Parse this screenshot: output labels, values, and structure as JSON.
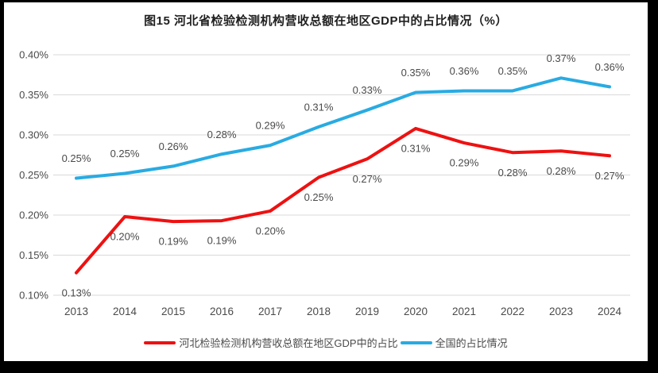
{
  "title": "图15 河北省检验检测机构营收总额在地区GDP中的占比情况（%）",
  "colors": {
    "hebei_series": "#ee1111",
    "national_series": "#29abe2",
    "gridline": "#d9d9d9",
    "axis_text": "#4a4a4a",
    "data_label_text": "#4a4a4a",
    "title_text": "#1f1f1f",
    "frame": "#000000",
    "background": "#ffffff"
  },
  "chart_data": {
    "type": "line",
    "title": "图15 河北省检验检测机构营收总额在地区GDP中的占比情况（%）",
    "categories": [
      "2013",
      "2014",
      "2015",
      "2016",
      "2017",
      "2018",
      "2019",
      "2020",
      "2021",
      "2022",
      "2023",
      "2024"
    ],
    "series": [
      {
        "name": "河北检验检测机构营收总额在地区GDP中的占比",
        "color": "#ee1111",
        "values": [
          0.13,
          0.2,
          0.19,
          0.19,
          0.2,
          0.25,
          0.27,
          0.31,
          0.29,
          0.28,
          0.28,
          0.27
        ],
        "labels": [
          "0.13%",
          "0.20%",
          "0.19%",
          "0.19%",
          "0.20%",
          "0.25%",
          "0.27%",
          "0.31%",
          "0.29%",
          "0.28%",
          "0.28%",
          "0.27%"
        ],
        "plot_values": [
          0.128,
          0.198,
          0.192,
          0.193,
          0.205,
          0.247,
          0.27,
          0.308,
          0.29,
          0.278,
          0.28,
          0.274
        ],
        "label_side": "below"
      },
      {
        "name": "全国的占比情况",
        "color": "#29abe2",
        "values": [
          0.25,
          0.25,
          0.26,
          0.28,
          0.29,
          0.31,
          0.33,
          0.35,
          0.36,
          0.35,
          0.37,
          0.36
        ],
        "labels": [
          "0.25%",
          "0.25%",
          "0.26%",
          "0.28%",
          "0.29%",
          "0.31%",
          "0.33%",
          "0.35%",
          "0.36%",
          "0.35%",
          "0.37%",
          "0.36%"
        ],
        "plot_values": [
          0.246,
          0.252,
          0.261,
          0.276,
          0.287,
          0.31,
          0.331,
          0.353,
          0.355,
          0.355,
          0.371,
          0.36
        ],
        "label_side": "above"
      }
    ],
    "y_ticks": [
      "0.40%",
      "0.35%",
      "0.30%",
      "0.25%",
      "0.20%",
      "0.15%",
      "0.10%"
    ],
    "y_tick_values": [
      0.4,
      0.35,
      0.3,
      0.25,
      0.2,
      0.15,
      0.1
    ],
    "ylim": [
      0.1,
      0.4
    ],
    "grid": true,
    "legend_position": "bottom"
  }
}
